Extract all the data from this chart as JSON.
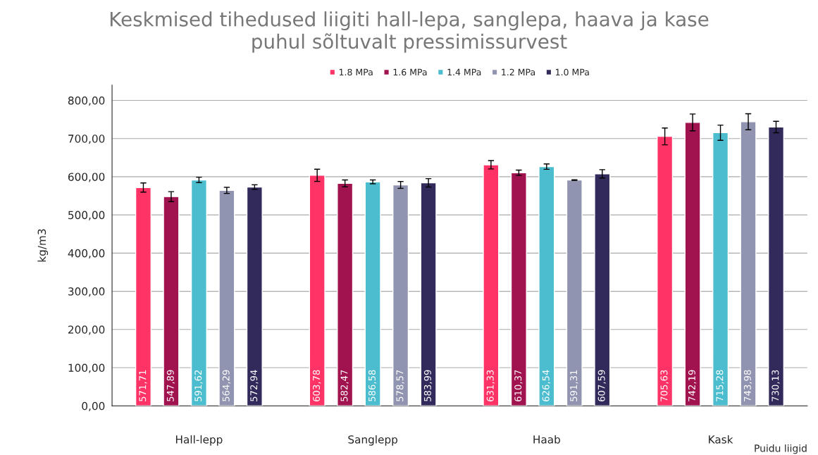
{
  "chart_data": {
    "type": "bar",
    "title": "Keskmised tihedused liigiti hall-lepa, sanglepa, haava ja kase\npuhul sõltuvalt pressimissurvest",
    "xlabel": "Puidu liigid",
    "ylabel": "kg/m3",
    "categories": [
      "Hall-lepp",
      "Sanglepp",
      "Haab",
      "Kask"
    ],
    "series": [
      {
        "name": "1.8 MPa",
        "color": "#ff3366",
        "values": [
          571.71,
          603.78,
          631.33,
          705.63
        ],
        "errors": [
          12,
          16,
          11,
          22
        ],
        "value_labels": [
          "571,71",
          "603,78",
          "631,33",
          "705,63"
        ]
      },
      {
        "name": "1.6 MPa",
        "color": "#a0134f",
        "values": [
          547.89,
          582.47,
          610.37,
          742.19
        ],
        "errors": [
          13,
          9,
          7,
          22
        ],
        "value_labels": [
          "547,89",
          "582,47",
          "610,37",
          "742,19"
        ]
      },
      {
        "name": "1.4 MPa",
        "color": "#4cbccf",
        "values": [
          591.62,
          586.58,
          626.54,
          715.28
        ],
        "errors": [
          7,
          5,
          7,
          20
        ],
        "value_labels": [
          "591,62",
          "586,58",
          "626,54",
          "715,28"
        ]
      },
      {
        "name": "1.2 MPa",
        "color": "#9194b0",
        "values": [
          564.29,
          578.57,
          591.31,
          743.98
        ],
        "errors": [
          8,
          9,
          1,
          21
        ],
        "value_labels": [
          "564,29",
          "578,57",
          "591,31",
          "743,98"
        ]
      },
      {
        "name": "1.0 MPa",
        "color": "#332a5c",
        "values": [
          572.94,
          583.99,
          607.59,
          730.13
        ],
        "errors": [
          6,
          11,
          11,
          15
        ],
        "value_labels": [
          "572,94",
          "583,99",
          "607,59",
          "730,13"
        ]
      }
    ],
    "ylim": [
      0,
      840
    ],
    "yticks": [
      {
        "value": 0,
        "label": "0,00"
      },
      {
        "value": 100,
        "label": "100,00"
      },
      {
        "value": 200,
        "label": "200,00"
      },
      {
        "value": 300,
        "label": "300,00"
      },
      {
        "value": 400,
        "label": "400,00"
      },
      {
        "value": 500,
        "label": "500,00"
      },
      {
        "value": 600,
        "label": "600,00"
      },
      {
        "value": 700,
        "label": "700,00"
      },
      {
        "value": 800,
        "label": "800,00"
      }
    ],
    "grid": "y",
    "legend": "top"
  }
}
